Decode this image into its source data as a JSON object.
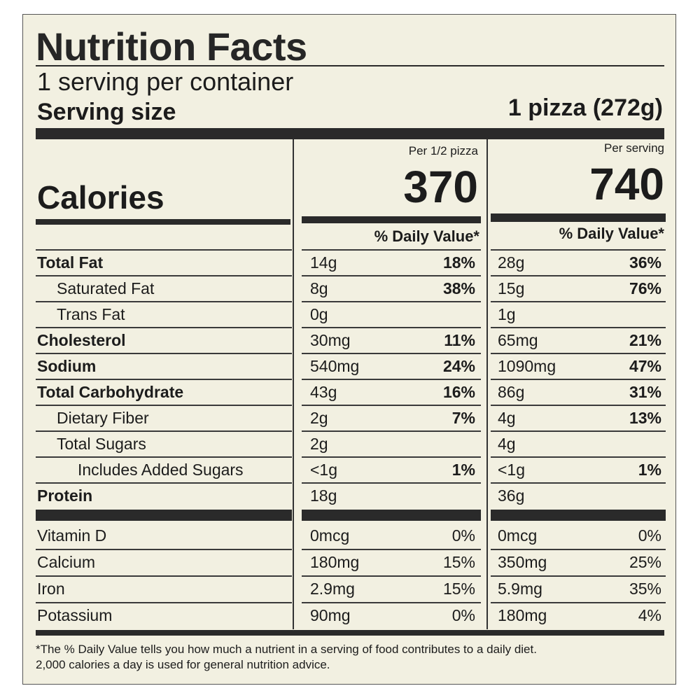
{
  "title": "Nutrition Facts",
  "servings_per_container": "1 serving per container",
  "serving_size_label": "Serving size",
  "serving_size_value": "1 pizza (272g)",
  "calories_label": "Calories",
  "columns": [
    {
      "header": "Per 1/2 pizza",
      "calories": "370",
      "dv_header": "% Daily Value*"
    },
    {
      "header": "Per serving",
      "calories": "740",
      "dv_header": "% Daily Value*"
    }
  ],
  "nutrients": [
    {
      "name": "Total Fat",
      "bold": true,
      "indent": 0,
      "c1_amt": "14g",
      "c1_dv": "18%",
      "c2_amt": "28g",
      "c2_dv": "36%"
    },
    {
      "name": "Saturated Fat",
      "bold": false,
      "indent": 1,
      "c1_amt": "8g",
      "c1_dv": "38%",
      "c2_amt": "15g",
      "c2_dv": "76%"
    },
    {
      "name": "Trans Fat",
      "bold": false,
      "indent": 1,
      "c1_amt": "0g",
      "c1_dv": "",
      "c2_amt": "1g",
      "c2_dv": ""
    },
    {
      "name": "Cholesterol",
      "bold": true,
      "indent": 0,
      "c1_amt": "30mg",
      "c1_dv": "11%",
      "c2_amt": "65mg",
      "c2_dv": "21%"
    },
    {
      "name": "Sodium",
      "bold": true,
      "indent": 0,
      "c1_amt": "540mg",
      "c1_dv": "24%",
      "c2_amt": "1090mg",
      "c2_dv": "47%"
    },
    {
      "name": "Total Carbohydrate",
      "bold": true,
      "indent": 0,
      "c1_amt": "43g",
      "c1_dv": "16%",
      "c2_amt": "86g",
      "c2_dv": "31%"
    },
    {
      "name": "Dietary Fiber",
      "bold": false,
      "indent": 1,
      "c1_amt": "2g",
      "c1_dv": "7%",
      "c2_amt": "4g",
      "c2_dv": "13%"
    },
    {
      "name": "Total Sugars",
      "bold": false,
      "indent": 1,
      "c1_amt": "2g",
      "c1_dv": "",
      "c2_amt": "4g",
      "c2_dv": ""
    },
    {
      "name": "Includes Added Sugars",
      "bold": false,
      "indent": 2,
      "c1_amt": "<1g",
      "c1_dv": "1%",
      "c2_amt": "<1g",
      "c2_dv": "1%"
    },
    {
      "name": "Protein",
      "bold": true,
      "indent": 0,
      "c1_amt": "18g",
      "c1_dv": "",
      "c2_amt": "36g",
      "c2_dv": ""
    }
  ],
  "vitamins": [
    {
      "name": "Vitamin D",
      "c1_amt": "0mcg",
      "c1_dv": "0%",
      "c2_amt": "0mcg",
      "c2_dv": "0%"
    },
    {
      "name": "Calcium",
      "c1_amt": "180mg",
      "c1_dv": "15%",
      "c2_amt": "350mg",
      "c2_dv": "25%"
    },
    {
      "name": "Iron",
      "c1_amt": "2.9mg",
      "c1_dv": "15%",
      "c2_amt": "5.9mg",
      "c2_dv": "35%"
    },
    {
      "name": "Potassium",
      "c1_amt": "90mg",
      "c1_dv": "0%",
      "c2_amt": "180mg",
      "c2_dv": "4%"
    }
  ],
  "footnote_line1": "*The % Daily Value tells you how much a nutrient in a serving of food contributes to a daily diet.",
  "footnote_line2": "2,000 calories a day is used for general nutrition advice."
}
